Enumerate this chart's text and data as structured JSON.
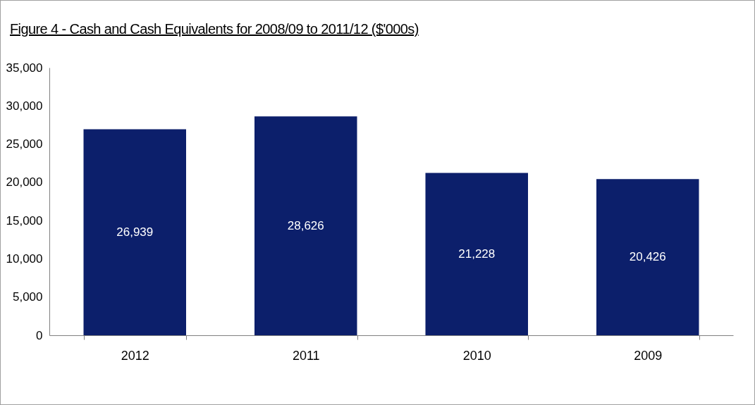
{
  "chart_data": {
    "type": "bar",
    "title": "Figure 4 - Cash and Cash Equivalents for 2008/09 to 2011/12 ($'000s)",
    "categories": [
      "2012",
      "2011",
      "2010",
      "2009"
    ],
    "values": [
      26939,
      28626,
      21228,
      20426
    ],
    "value_labels": [
      "26,939",
      "28,626",
      "21,228",
      "20,426"
    ],
    "color": "#0c1f6b",
    "ylim": [
      0,
      35000
    ],
    "yticks": [
      {
        "value": 0,
        "label": "0"
      },
      {
        "value": 5000,
        "label": "5,000"
      },
      {
        "value": 10000,
        "label": "10,000"
      },
      {
        "value": 15000,
        "label": "15,000"
      },
      {
        "value": 20000,
        "label": "20,000"
      },
      {
        "value": 25000,
        "label": "25,000"
      },
      {
        "value": 30000,
        "label": "30,000"
      },
      {
        "value": 35000,
        "label": "35,000"
      }
    ],
    "grid": false
  }
}
